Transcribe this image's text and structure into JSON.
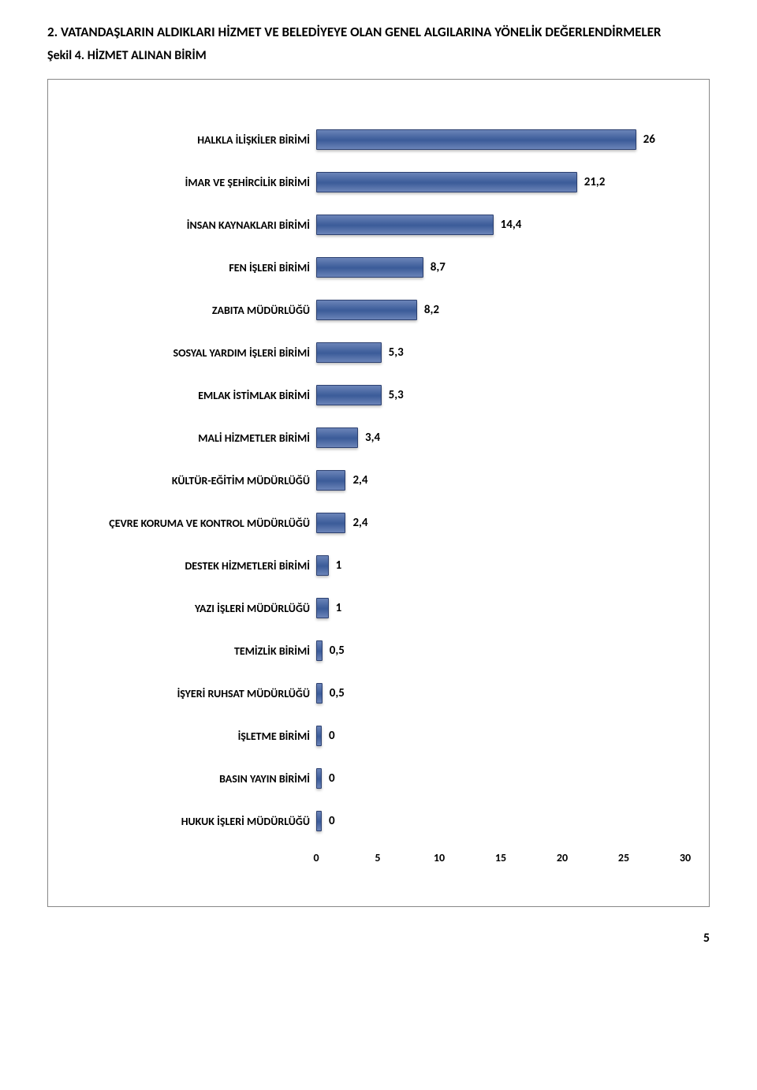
{
  "section": {
    "number": "2.",
    "heading": "VATANDAŞLARIN ALDIKLARI HİZMET VE BELEDİYEYE OLAN GENEL ALGILARINA YÖNELİK DEĞERLENDİRMELER"
  },
  "figure": {
    "label": "Şekil 4. HİZMET ALINAN BİRİM"
  },
  "chart": {
    "type": "bar",
    "orientation": "horizontal",
    "xlim": [
      0,
      30
    ],
    "xticks": [
      0,
      5,
      10,
      15,
      20,
      25,
      30
    ],
    "bar_color": "#4a6aa8",
    "bar_border_color": "#2c4070",
    "background_color": "#ffffff",
    "label_fontsize": 14,
    "label_fontweight": "bold",
    "value_fontsize": 15,
    "tick_fontsize": 14,
    "bars": [
      {
        "label": "HALKLA İLİŞKİLER BİRİMİ",
        "value": 26,
        "value_text": "26"
      },
      {
        "label": "İMAR VE ŞEHİRCİLİK BİRİMİ",
        "value": 21.2,
        "value_text": "21,2"
      },
      {
        "label": "İNSAN KAYNAKLARI BİRİMİ",
        "value": 14.4,
        "value_text": "14,4"
      },
      {
        "label": "FEN İŞLERİ BİRİMİ",
        "value": 8.7,
        "value_text": "8,7"
      },
      {
        "label": "ZABITA MÜDÜRLÜĞÜ",
        "value": 8.2,
        "value_text": "8,2"
      },
      {
        "label": "SOSYAL YARDIM İŞLERİ BİRİMİ",
        "value": 5.3,
        "value_text": "5,3"
      },
      {
        "label": "EMLAK İSTİMLAK BİRİMİ",
        "value": 5.3,
        "value_text": "5,3"
      },
      {
        "label": "MALİ HİZMETLER BİRİMİ",
        "value": 3.4,
        "value_text": "3,4"
      },
      {
        "label": "KÜLTÜR-EĞİTİM MÜDÜRLÜĞÜ",
        "value": 2.4,
        "value_text": "2,4"
      },
      {
        "label": "ÇEVRE KORUMA VE KONTROL MÜDÜRLÜĞÜ",
        "value": 2.4,
        "value_text": "2,4"
      },
      {
        "label": "DESTEK HİZMETLERİ BİRİMİ",
        "value": 1,
        "value_text": "1"
      },
      {
        "label": "YAZI İŞLERİ MÜDÜRLÜĞÜ",
        "value": 1,
        "value_text": "1"
      },
      {
        "label": "TEMİZLİK BİRİMİ",
        "value": 0.5,
        "value_text": "0,5"
      },
      {
        "label": "İŞYERİ RUHSAT MÜDÜRLÜĞÜ",
        "value": 0.5,
        "value_text": "0,5"
      },
      {
        "label": "İŞLETME BİRİMİ",
        "value": 0,
        "value_text": "0"
      },
      {
        "label": "BASIN YAYIN BİRİMİ",
        "value": 0,
        "value_text": "0"
      },
      {
        "label": "HUKUK İŞLERİ MÜDÜRLÜĞÜ",
        "value": 0,
        "value_text": "0"
      }
    ]
  },
  "page_number": "5"
}
